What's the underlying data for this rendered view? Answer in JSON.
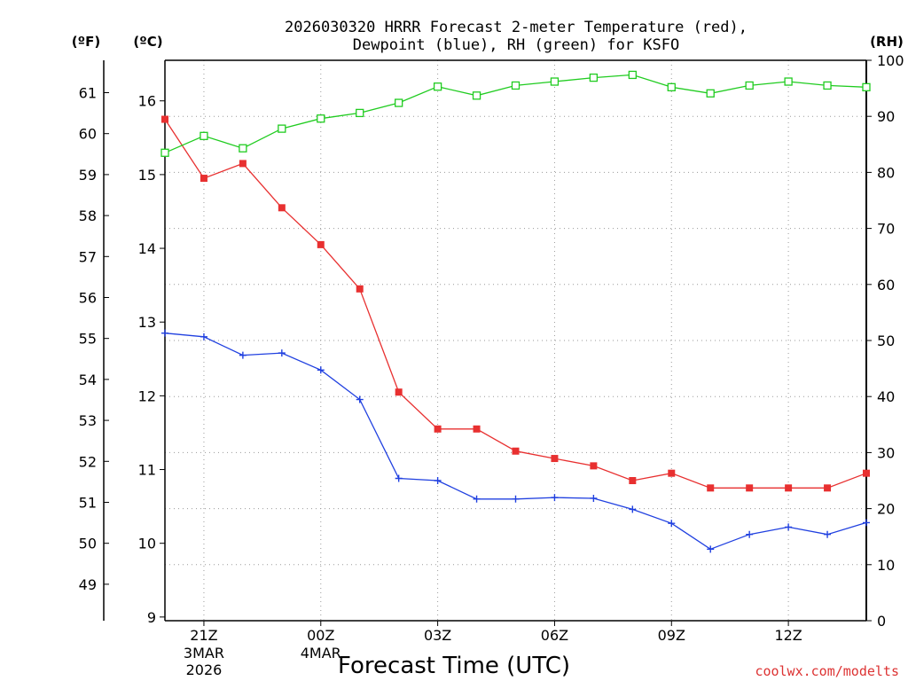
{
  "chart_data": {
    "type": "line",
    "title_line1": "2026030320 HRRR Forecast 2-meter Temperature (red),",
    "title_line2": "Dewpoint (blue), RH (green) for KSFO",
    "xlabel": "Forecast Time (UTC)",
    "credit": "coolwx.com/modelts",
    "left_unit_f": "(ºF)",
    "left_unit_c": "(ºC)",
    "right_unit": "(RH)",
    "x_hours": [
      20,
      21,
      22,
      23,
      24,
      25,
      26,
      27,
      28,
      29,
      30,
      31,
      32,
      33,
      34,
      35,
      36,
      37,
      38
    ],
    "x_ticks": [
      {
        "hour": 21,
        "label": "21Z",
        "sub1": "3MAR",
        "sub2": "2026"
      },
      {
        "hour": 24,
        "label": "00Z",
        "sub1": "4MAR",
        "sub2": ""
      },
      {
        "hour": 27,
        "label": "03Z",
        "sub1": "",
        "sub2": ""
      },
      {
        "hour": 30,
        "label": "06Z",
        "sub1": "",
        "sub2": ""
      },
      {
        "hour": 33,
        "label": "09Z",
        "sub1": "",
        "sub2": ""
      },
      {
        "hour": 36,
        "label": "12Z",
        "sub1": "",
        "sub2": ""
      }
    ],
    "xlim": [
      20,
      38
    ],
    "ylim_c": [
      8.95,
      16.55
    ],
    "y_ticks_c": [
      9,
      10,
      11,
      12,
      13,
      14,
      15,
      16
    ],
    "y_ticks_f": [
      49,
      50,
      51,
      52,
      53,
      54,
      55,
      56,
      57,
      58,
      59,
      60,
      61
    ],
    "ylim_rh": [
      0,
      100
    ],
    "y_ticks_rh": [
      0,
      10,
      20,
      30,
      40,
      50,
      60,
      70,
      80,
      90,
      100
    ],
    "series": [
      {
        "name": "Temperature",
        "unit": "C",
        "color": "#e83030",
        "marker": "filled-square",
        "values": [
          15.75,
          14.95,
          15.15,
          14.55,
          14.05,
          13.45,
          12.05,
          11.55,
          11.55,
          11.25,
          11.15,
          11.05,
          10.85,
          10.95,
          10.75,
          10.75,
          10.75,
          10.75,
          10.95
        ]
      },
      {
        "name": "Dewpoint",
        "unit": "C",
        "color": "#2040e0",
        "marker": "plus",
        "values": [
          12.85,
          12.8,
          12.55,
          12.58,
          12.35,
          11.95,
          10.88,
          10.85,
          10.6,
          10.6,
          10.62,
          10.61,
          10.46,
          10.27,
          9.92,
          10.12,
          10.22,
          10.12,
          10.28
        ]
      },
      {
        "name": "RH",
        "unit": "%",
        "color": "#20cc20",
        "marker": "open-square",
        "values": [
          83.5,
          86.5,
          84.3,
          87.8,
          89.6,
          90.6,
          92.4,
          95.3,
          93.7,
          95.5,
          96.2,
          96.9,
          97.4,
          95.2,
          94.1,
          95.5,
          96.2,
          95.5,
          95.2
        ]
      }
    ]
  }
}
